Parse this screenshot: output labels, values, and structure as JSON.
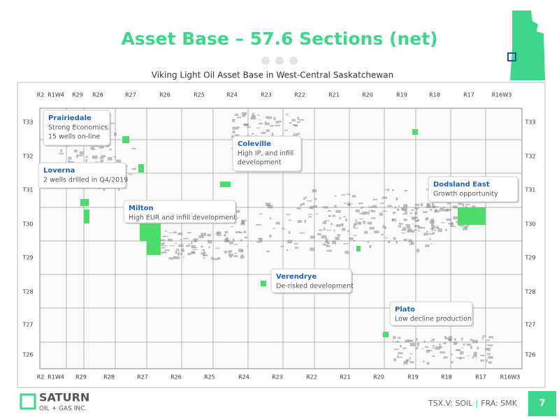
{
  "header": {
    "title": "Asset Base – 57.6 Sections (net)",
    "subtitle": "Viking Light Oil Asset Base in West-Central Saskatchewan"
  },
  "map": {
    "ranges_top": [
      "R2",
      "R1W4",
      "R29",
      "R28",
      "R27",
      "R26",
      "R25",
      "R24",
      "R23",
      "R22",
      "R21",
      "R20",
      "R19",
      "R18",
      "R17",
      "R16W3"
    ],
    "ranges_bottom": [
      "R2",
      "R1W4",
      "R29",
      "R28",
      "R27",
      "R26",
      "R25",
      "R24",
      "R23",
      "R22",
      "R21",
      "R20",
      "R19",
      "R18",
      "R17",
      "R16W3"
    ],
    "townships_left": [
      "T33",
      "T32",
      "T31",
      "T30",
      "T29",
      "T28",
      "T27",
      "T26"
    ],
    "townships_right": [
      "T33",
      "T32",
      "T31",
      "T30",
      "T29",
      "T28",
      "T27",
      "T26"
    ],
    "callouts": [
      {
        "name": "Prairiedale",
        "lines": [
          "Strong Economics.",
          "15 wells on-line"
        ]
      },
      {
        "name": "Loverna",
        "lines": [
          "2 wells drilled in Q4/2019"
        ]
      },
      {
        "name": "Coleville",
        "lines": [
          "High IP, and infill",
          "development"
        ]
      },
      {
        "name": "Milton",
        "lines": [
          "High EUR and infill development"
        ]
      },
      {
        "name": "Dodsland East",
        "lines": [
          "Growth opportunity"
        ]
      },
      {
        "name": "Verendrye",
        "lines": [
          "De-risked development"
        ]
      },
      {
        "name": "Plato",
        "lines": [
          "Low decline production"
        ]
      }
    ]
  },
  "footer": {
    "logo_name": "SATURN",
    "logo_sub": "OIL + GAS INC.",
    "ticker_parts": [
      "TSX.V: SOIL",
      "|",
      "FRA: SMK"
    ],
    "page_number": "7"
  }
}
